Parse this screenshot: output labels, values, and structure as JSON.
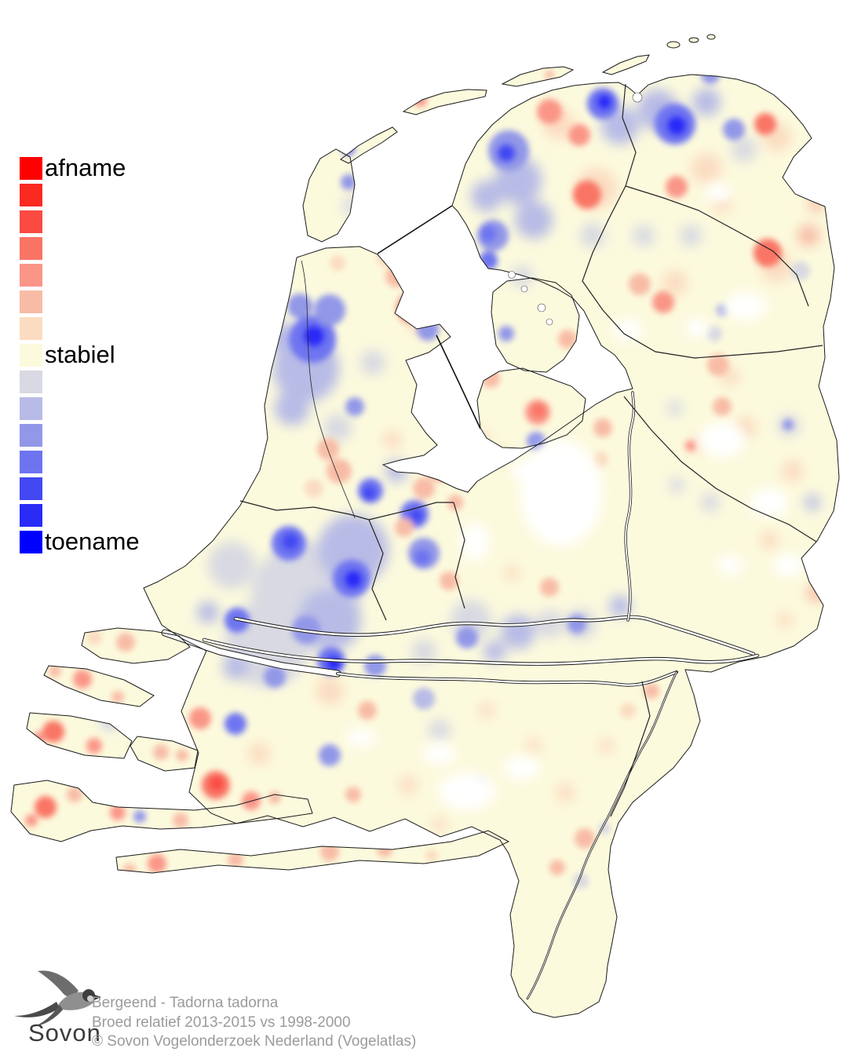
{
  "legend": {
    "swatches": [
      "#ff0000",
      "#fb2a21",
      "#fb4a42",
      "#f97465",
      "#fa9587",
      "#f8bca6",
      "#fbdcc1",
      "#fcfadd",
      "#d8d9e2",
      "#b8bbe6",
      "#9297e8",
      "#6e74f0",
      "#4348f2",
      "#2a2bf7",
      "#0000ff"
    ],
    "label_decrease": "afname",
    "label_stable": "stabiel",
    "label_increase": "toename"
  },
  "footer": {
    "species": "Bergeend - Tadorna tadorna",
    "period": "Broed relatief 2013-2015 vs 1998-2000",
    "copyright": "© Sovon Vogelonderzoek Nederland (Vogelatlas)",
    "text_color": "#9b9b9b"
  },
  "logo": {
    "text": "Sovon"
  },
  "map": {
    "land_color": "#fcfadd",
    "sea_color": "#ffffff",
    "coast_color": "#1a1a1a",
    "border_color": "#222222"
  }
}
